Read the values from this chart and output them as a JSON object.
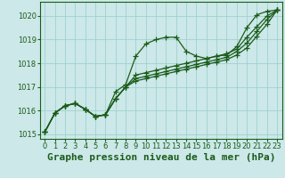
{
  "title": "Graphe pression niveau de la mer (hPa)",
  "background_color": "#cce8e8",
  "plot_bg_color": "#cce8e8",
  "grid_color": "#99cccc",
  "line_color": "#1a5c1a",
  "marker_color": "#1a5c1a",
  "xlim": [
    -0.5,
    23.5
  ],
  "ylim": [
    1014.8,
    1020.6
  ],
  "yticks": [
    1015,
    1016,
    1017,
    1018,
    1019,
    1020
  ],
  "xticks": [
    0,
    1,
    2,
    3,
    4,
    5,
    6,
    7,
    8,
    9,
    10,
    11,
    12,
    13,
    14,
    15,
    16,
    17,
    18,
    19,
    20,
    21,
    22,
    23
  ],
  "series": [
    [
      1015.1,
      1015.9,
      1016.2,
      1016.3,
      1016.05,
      1015.75,
      1015.82,
      1016.8,
      1017.1,
      1018.3,
      1018.82,
      1019.0,
      1019.1,
      1019.1,
      1018.5,
      1018.3,
      1018.2,
      1018.3,
      1018.35,
      1018.7,
      1019.5,
      1020.05,
      1020.2,
      1020.25
    ],
    [
      1015.1,
      1015.9,
      1016.2,
      1016.3,
      1016.05,
      1015.75,
      1015.82,
      1016.5,
      1017.0,
      1017.5,
      1017.6,
      1017.7,
      1017.8,
      1017.9,
      1018.0,
      1018.1,
      1018.2,
      1018.3,
      1018.4,
      1018.6,
      1019.1,
      1019.55,
      1020.0,
      1020.25
    ],
    [
      1015.1,
      1015.9,
      1016.2,
      1016.3,
      1016.05,
      1015.75,
      1015.82,
      1016.5,
      1017.0,
      1017.35,
      1017.45,
      1017.55,
      1017.65,
      1017.75,
      1017.85,
      1017.95,
      1018.05,
      1018.15,
      1018.25,
      1018.5,
      1018.85,
      1019.35,
      1019.85,
      1020.25
    ],
    [
      1015.1,
      1015.9,
      1016.2,
      1016.3,
      1016.05,
      1015.75,
      1015.82,
      1016.5,
      1017.0,
      1017.25,
      1017.35,
      1017.45,
      1017.55,
      1017.65,
      1017.75,
      1017.85,
      1017.95,
      1018.05,
      1018.15,
      1018.35,
      1018.65,
      1019.15,
      1019.65,
      1020.25
    ]
  ],
  "title_fontsize": 8,
  "tick_fontsize": 6,
  "marker_size": 4,
  "line_width": 0.9
}
